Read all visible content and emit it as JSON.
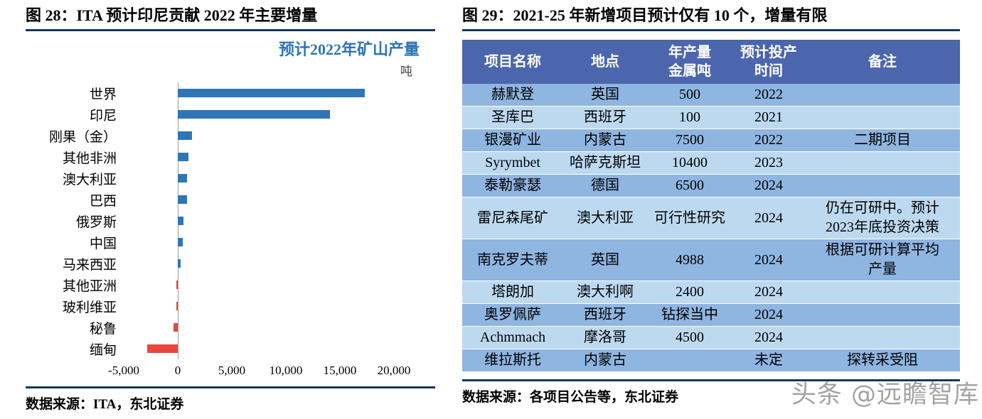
{
  "figure28": {
    "title": "图 28：ITA 预计印尼贡献 2022 年主要增量",
    "source": "数据来源：ITA，东北证券"
  },
  "figure29": {
    "title": "图 29：2021-25 年新增项目预计仅有 10 个，增量有限",
    "source": "数据来源：各项目公告等，东北证券"
  },
  "chart_data": [
    {
      "type": "bar",
      "orientation": "horizontal",
      "title": "预计2022年矿山产量",
      "unit": "吨",
      "categories": [
        "世界",
        "印尼",
        "刚果（金）",
        "其他非洲",
        "澳大利亚",
        "巴西",
        "俄罗斯",
        "中国",
        "马来西亚",
        "其他亚洲",
        "玻利维亚",
        "秘鲁",
        "缅甸"
      ],
      "values": [
        17300,
        14100,
        1300,
        1000,
        850,
        850,
        550,
        450,
        250,
        -120,
        -150,
        -400,
        -2800
      ],
      "xlim": [
        -5000,
        20000
      ],
      "xticks": [
        -5000,
        0,
        5000,
        10000,
        15000,
        20000
      ],
      "xtick_labels": [
        "-5,000",
        "0",
        "5,000",
        "10,000",
        "15,000",
        "20,000"
      ],
      "colors": {
        "positive": "#2e75b6",
        "negative": "#e8473f"
      },
      "legend": "none",
      "grid": "off"
    },
    {
      "type": "table",
      "columns": [
        "项目名称",
        "地点",
        "年产量\n金属吨",
        "预计投产\n时间",
        "备注"
      ],
      "rows": [
        [
          "赫默登",
          "英国",
          "500",
          "2022",
          ""
        ],
        [
          "圣库巴",
          "西班牙",
          "100",
          "2021",
          ""
        ],
        [
          "银漫矿业",
          "内蒙古",
          "7500",
          "2022",
          "二期项目"
        ],
        [
          "Syrymbet",
          "哈萨克斯坦",
          "10400",
          "2023",
          ""
        ],
        [
          "泰勒豪瑟",
          "德国",
          "6500",
          "2024",
          ""
        ],
        [
          "雷尼森尾矿",
          "澳大利亚",
          "可行性研究",
          "2024",
          "仍在可研中。预计\n2023年底投资决策"
        ],
        [
          "南克罗夫蒂",
          "英国",
          "4988",
          "2024",
          "根据可研计算平均\n产量"
        ],
        [
          "塔朗加",
          "澳大利啊",
          "2400",
          "2024",
          ""
        ],
        [
          "奥罗佩萨",
          "西班牙",
          "钻探当中",
          "2024",
          ""
        ],
        [
          "Achmmach",
          "摩洛哥",
          "4500",
          "2024",
          ""
        ],
        [
          "维拉斯托",
          "内蒙古",
          "",
          "未定",
          "探转采受阻"
        ]
      ]
    }
  ],
  "watermark": {
    "brand": "头条",
    "handle": "@远瞻智库"
  }
}
